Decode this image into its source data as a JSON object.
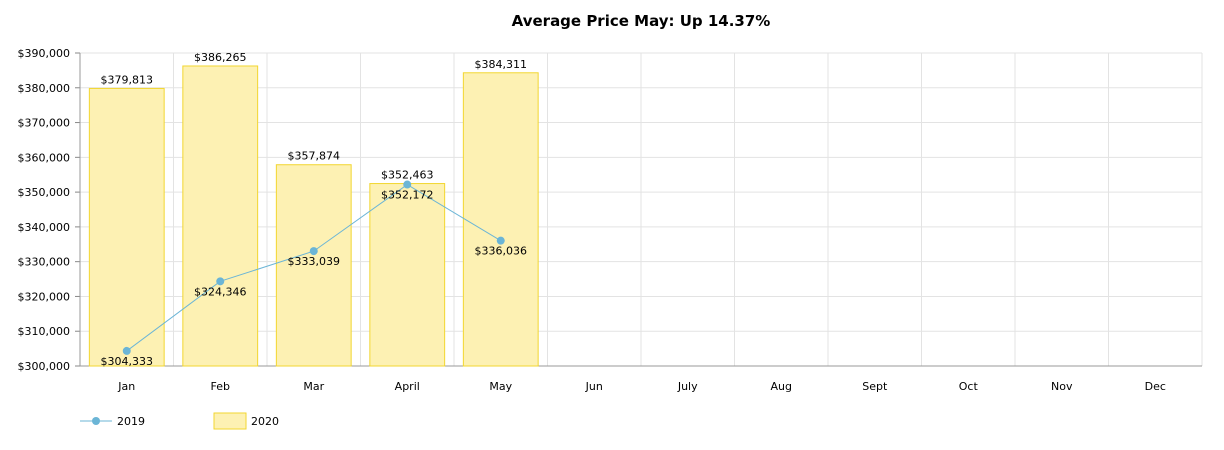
{
  "chart_data": {
    "type": "bar",
    "title": "Average Price May: Up 14.37%",
    "xlabel": "",
    "ylabel": "",
    "categories": [
      "Jan",
      "Feb",
      "Mar",
      "April",
      "May",
      "Jun",
      "July",
      "Aug",
      "Sept",
      "Oct",
      "Nov",
      "Dec"
    ],
    "ylim": [
      300000,
      390000
    ],
    "yticks": [
      300000,
      310000,
      320000,
      330000,
      340000,
      350000,
      360000,
      370000,
      380000,
      390000
    ],
    "ytick_labels": [
      "$300,000",
      "$310,000",
      "$320,000",
      "$330,000",
      "$340,000",
      "$350,000",
      "$360,000",
      "$370,000",
      "$380,000",
      "$390,000"
    ],
    "grid": true,
    "legend_position": "bottom-left",
    "series": [
      {
        "name": "2019",
        "type": "line",
        "color": "#6bb5d6",
        "values": [
          304333,
          324346,
          333039,
          352172,
          336036,
          null,
          null,
          null,
          null,
          null,
          null,
          null
        ],
        "labels": [
          "$304,333",
          "$324,346",
          "$333,039",
          "$352,172",
          "$336,036"
        ]
      },
      {
        "name": "2020",
        "type": "bar",
        "color": "#fdf1b3",
        "stroke": "#f2d630",
        "values": [
          379813,
          386265,
          357874,
          352463,
          384311,
          null,
          null,
          null,
          null,
          null,
          null,
          null
        ],
        "labels": [
          "$379,813",
          "$386,265",
          "$357,874",
          "$352,463",
          "$384,311"
        ]
      }
    ]
  }
}
